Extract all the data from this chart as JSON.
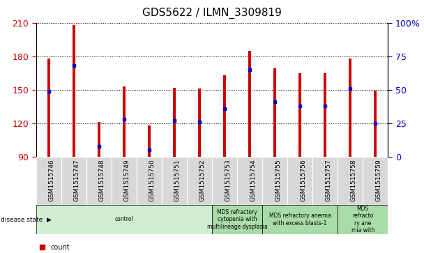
{
  "title": "GDS5622 / ILMN_3309819",
  "samples": [
    "GSM1515746",
    "GSM1515747",
    "GSM1515748",
    "GSM1515749",
    "GSM1515750",
    "GSM1515751",
    "GSM1515752",
    "GSM1515753",
    "GSM1515754",
    "GSM1515755",
    "GSM1515756",
    "GSM1515757",
    "GSM1515758",
    "GSM1515759"
  ],
  "counts": [
    178,
    208,
    121,
    153,
    118,
    152,
    151,
    163,
    185,
    169,
    165,
    165,
    178,
    149
  ],
  "percentile_ranks": [
    49,
    68,
    8,
    28,
    5,
    27,
    26,
    36,
    65,
    41,
    38,
    38,
    51,
    25
  ],
  "y_min": 90,
  "y_max": 210,
  "y_ticks_left": [
    90,
    120,
    150,
    180,
    210
  ],
  "y_ticks_right": [
    0,
    25,
    50,
    75,
    100
  ],
  "disease_groups": [
    {
      "label": "control",
      "start": 0,
      "end": 7,
      "color": "#d0eed0"
    },
    {
      "label": "MDS refractory\ncytopenia with\nmultilineage dysplasia",
      "start": 7,
      "end": 9,
      "color": "#a8dca8"
    },
    {
      "label": "MDS refractory anemia\nwith excess blasts-1",
      "start": 9,
      "end": 12,
      "color": "#a8dca8"
    },
    {
      "label": "MDS\nrefracto\nry ane\nmia with",
      "start": 12,
      "end": 14,
      "color": "#a8dca8"
    }
  ],
  "bar_color": "#cc0000",
  "dot_color": "#0000cc",
  "bar_width": 0.12,
  "title_fontsize": 11,
  "tick_color_left": "#cc0000",
  "tick_color_right": "#0000cc",
  "xtick_bg": "#d8d8d8",
  "xtick_fontsize": 6.5,
  "ytick_fontsize": 9
}
